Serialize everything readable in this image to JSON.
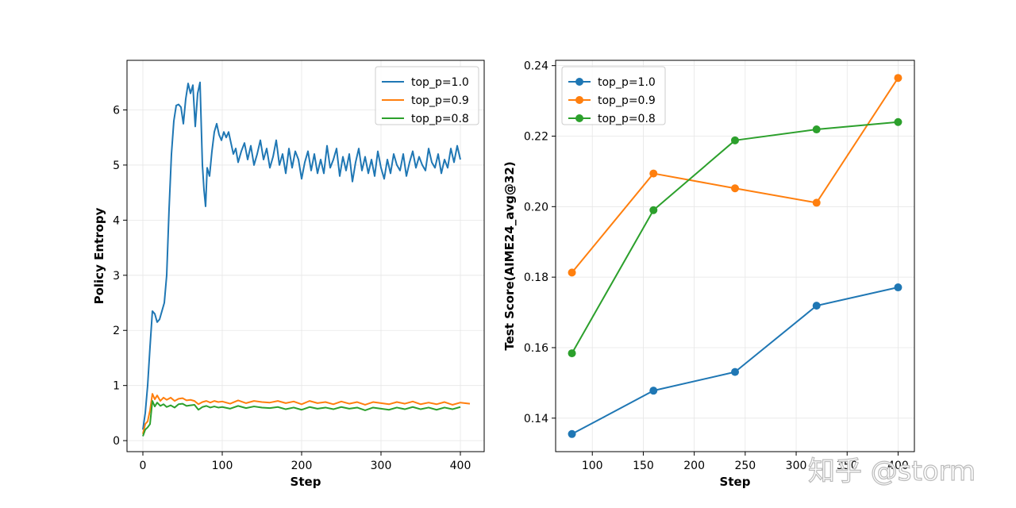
{
  "chart_data": [
    {
      "type": "line",
      "xlabel": "Step",
      "ylabel": "Policy Entropy",
      "xlim": [
        -20,
        430
      ],
      "ylim": [
        -0.2,
        6.9
      ],
      "xticks": [
        0,
        100,
        200,
        300,
        400
      ],
      "yticks": [
        0,
        1,
        2,
        3,
        4,
        5,
        6
      ],
      "grid": true,
      "legend_position": "top-right",
      "series": [
        {
          "name": "top_p=1.0",
          "color": "#1f77b4",
          "x": [
            0,
            3,
            6,
            9,
            12,
            15,
            18,
            21,
            24,
            27,
            30,
            33,
            36,
            39,
            42,
            45,
            48,
            51,
            54,
            57,
            60,
            63,
            66,
            69,
            72,
            75,
            77,
            79,
            81,
            84,
            87,
            90,
            93,
            96,
            99,
            102,
            105,
            108,
            111,
            114,
            117,
            120,
            124,
            128,
            132,
            136,
            140,
            144,
            148,
            152,
            156,
            160,
            164,
            168,
            172,
            176,
            180,
            184,
            188,
            192,
            196,
            200,
            204,
            208,
            212,
            216,
            220,
            224,
            228,
            232,
            236,
            240,
            244,
            248,
            252,
            256,
            260,
            264,
            268,
            272,
            276,
            280,
            284,
            288,
            292,
            296,
            300,
            304,
            308,
            312,
            316,
            320,
            324,
            328,
            332,
            336,
            340,
            344,
            348,
            352,
            356,
            360,
            364,
            368,
            372,
            376,
            380,
            384,
            388,
            392,
            396,
            400
          ],
          "y": [
            0.2,
            0.5,
            1.0,
            1.7,
            2.35,
            2.3,
            2.15,
            2.2,
            2.35,
            2.5,
            3.0,
            4.2,
            5.2,
            5.8,
            6.08,
            6.1,
            6.05,
            5.75,
            6.2,
            6.48,
            6.3,
            6.45,
            5.7,
            6.3,
            6.5,
            5.0,
            4.55,
            4.25,
            4.95,
            4.8,
            5.25,
            5.6,
            5.75,
            5.55,
            5.45,
            5.6,
            5.5,
            5.6,
            5.4,
            5.2,
            5.3,
            5.05,
            5.25,
            5.4,
            5.1,
            5.35,
            5.0,
            5.2,
            5.45,
            5.1,
            5.3,
            4.95,
            5.15,
            5.45,
            5.0,
            5.2,
            4.85,
            5.3,
            4.95,
            5.25,
            5.1,
            4.75,
            5.05,
            5.25,
            4.9,
            5.2,
            4.85,
            5.1,
            4.85,
            5.35,
            4.95,
            5.1,
            5.3,
            4.8,
            5.15,
            4.9,
            5.2,
            4.7,
            5.05,
            5.3,
            4.9,
            5.15,
            4.85,
            5.1,
            4.8,
            5.25,
            4.95,
            4.75,
            5.1,
            4.85,
            5.2,
            5.0,
            4.9,
            5.2,
            4.8,
            5.05,
            5.25,
            4.95,
            5.15,
            5.0,
            4.9,
            5.3,
            5.05,
            4.95,
            5.2,
            4.85,
            5.1,
            4.95,
            5.3,
            5.05,
            5.35,
            5.1
          ]
        },
        {
          "name": "top_p=0.9",
          "color": "#ff7f0e",
          "x": [
            0,
            3,
            6,
            9,
            12,
            15,
            18,
            22,
            26,
            30,
            35,
            40,
            45,
            50,
            55,
            60,
            65,
            70,
            75,
            80,
            85,
            90,
            95,
            100,
            110,
            120,
            130,
            140,
            150,
            160,
            170,
            180,
            190,
            200,
            210,
            220,
            230,
            240,
            250,
            260,
            270,
            280,
            290,
            300,
            310,
            320,
            330,
            340,
            350,
            360,
            370,
            380,
            390,
            400,
            412
          ],
          "y": [
            0.12,
            0.3,
            0.35,
            0.55,
            0.85,
            0.75,
            0.82,
            0.72,
            0.78,
            0.74,
            0.78,
            0.72,
            0.76,
            0.77,
            0.73,
            0.74,
            0.72,
            0.66,
            0.7,
            0.72,
            0.69,
            0.72,
            0.7,
            0.71,
            0.67,
            0.73,
            0.68,
            0.72,
            0.7,
            0.69,
            0.72,
            0.68,
            0.71,
            0.66,
            0.72,
            0.68,
            0.7,
            0.66,
            0.71,
            0.67,
            0.7,
            0.65,
            0.7,
            0.68,
            0.66,
            0.7,
            0.67,
            0.71,
            0.66,
            0.69,
            0.66,
            0.7,
            0.65,
            0.69,
            0.67
          ]
        },
        {
          "name": "top_p=0.8",
          "color": "#2ca02c",
          "x": [
            0,
            3,
            6,
            9,
            12,
            15,
            18,
            22,
            26,
            30,
            35,
            40,
            45,
            50,
            55,
            60,
            65,
            70,
            75,
            80,
            85,
            90,
            95,
            100,
            110,
            120,
            130,
            140,
            150,
            160,
            170,
            180,
            190,
            200,
            210,
            220,
            230,
            240,
            250,
            260,
            270,
            280,
            290,
            300,
            310,
            320,
            330,
            340,
            350,
            360,
            370,
            380,
            390,
            400
          ],
          "y": [
            0.08,
            0.2,
            0.24,
            0.3,
            0.72,
            0.62,
            0.69,
            0.63,
            0.66,
            0.61,
            0.64,
            0.6,
            0.66,
            0.67,
            0.63,
            0.64,
            0.65,
            0.56,
            0.61,
            0.63,
            0.6,
            0.62,
            0.6,
            0.61,
            0.58,
            0.63,
            0.59,
            0.62,
            0.6,
            0.59,
            0.61,
            0.57,
            0.6,
            0.56,
            0.61,
            0.58,
            0.6,
            0.57,
            0.61,
            0.58,
            0.6,
            0.55,
            0.6,
            0.58,
            0.56,
            0.6,
            0.57,
            0.61,
            0.57,
            0.6,
            0.56,
            0.6,
            0.57,
            0.61
          ]
        }
      ]
    },
    {
      "type": "line",
      "xlabel": "Step",
      "ylabel": "Test Score(AIME24_avg@32)",
      "xlim": [
        64,
        416
      ],
      "ylim": [
        0.1305,
        0.2415
      ],
      "xticks": [
        100,
        150,
        200,
        250,
        300,
        350,
        400
      ],
      "yticks": [
        0.14,
        0.16,
        0.18,
        0.2,
        0.22,
        0.24
      ],
      "ytick_labels": [
        "0.14",
        "0.16",
        "0.18",
        "0.20",
        "0.22",
        "0.24"
      ],
      "grid": true,
      "markers": true,
      "legend_position": "top-left",
      "x": [
        80,
        160,
        240,
        320,
        400
      ],
      "series": [
        {
          "name": "top_p=1.0",
          "color": "#1f77b4",
          "values": [
            0.1355,
            0.1478,
            0.1531,
            0.1719,
            0.1771
          ]
        },
        {
          "name": "top_p=0.9",
          "color": "#ff7f0e",
          "values": [
            0.1813,
            0.2094,
            0.2052,
            0.2011,
            0.2365
          ]
        },
        {
          "name": "top_p=0.8",
          "color": "#2ca02c",
          "values": [
            0.1584,
            0.199,
            0.2188,
            0.2219,
            0.224
          ]
        }
      ]
    }
  ],
  "watermark": "知乎 @storm"
}
